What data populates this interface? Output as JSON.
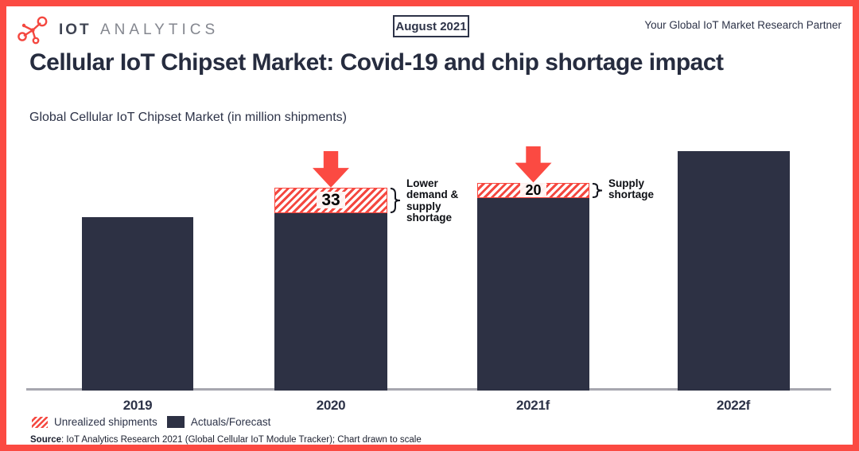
{
  "header": {
    "brand_bold": "IOT",
    "brand_light": "ANALYTICS",
    "date_badge": "August 2021",
    "tagline": "Your Global IoT Market Research Partner"
  },
  "title": "Cellular IoT Chipset Market: Covid-19 and chip shortage impact",
  "subtitle": "Global Cellular IoT Chipset Market (in million shipments)",
  "chart_data": {
    "type": "bar",
    "stacked": true,
    "categories": [
      "2019",
      "2020",
      "2021f",
      "2022f"
    ],
    "series": [
      {
        "name": "Actuals/Forecast",
        "color": "#2d3144",
        "values": [
          225,
          230,
          250,
          310
        ]
      },
      {
        "name": "Unrealized shipments",
        "color": "#f9473e",
        "pattern": "red-diagonal-hatch",
        "values": [
          0,
          33,
          20,
          0
        ]
      }
    ],
    "labeled_values": {
      "2020_unrealized": 33,
      "2021f_unrealized": 20
    },
    "annotations": [
      {
        "category": "2020",
        "text": "Lower demand & supply shortage"
      },
      {
        "category": "2021f",
        "text": "Supply shortage"
      }
    ],
    "title": "Global Cellular IoT Chipset Market (in million shipments)",
    "unit": "million shipments",
    "ylim": [
      0,
      320
    ],
    "value_axis_shown": false,
    "grid": false,
    "legend_position": "bottom-left",
    "note_on_scale": "Chart drawn to scale"
  },
  "legend": [
    {
      "label": "Unrealized shipments",
      "swatch": "hatch"
    },
    {
      "label": "Actuals/Forecast",
      "swatch": "solid"
    }
  ],
  "source": {
    "label": "Source",
    "rest": ": IoT Analytics Research 2021 (Global Cellular IoT Module Tracker); Chart drawn to scale"
  },
  "icons": {
    "logo": "molecule-network-icon",
    "arrow": "down-arrow-icon",
    "brace": "curly-brace-icon"
  },
  "colors": {
    "navy": "#2d3144",
    "red": "#fb4a42",
    "axis_gray": "#a7a7af",
    "annotation_black": "#0d0f14"
  }
}
